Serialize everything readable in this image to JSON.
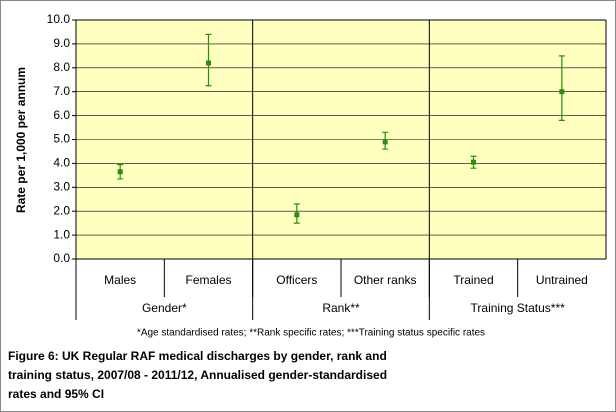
{
  "chart_data": {
    "type": "errorpoint",
    "y_label": "Rate per 1,000 per annum",
    "categories": [
      "Males",
      "Females",
      "Officers",
      "Other ranks",
      "Trained",
      "Untrained"
    ],
    "groups": [
      {
        "name": "Gender*",
        "span": 2
      },
      {
        "name": "Rank**",
        "span": 2
      },
      {
        "name": "Training Status***",
        "span": 2
      }
    ],
    "series": [
      {
        "color": "#2e8b14",
        "values": [
          3.65,
          8.2,
          1.85,
          4.9,
          4.05,
          7.0
        ],
        "lower": [
          3.35,
          7.25,
          1.5,
          4.6,
          3.8,
          5.8
        ],
        "upper": [
          3.95,
          9.4,
          2.3,
          5.3,
          4.3,
          8.5
        ]
      }
    ],
    "ylim": [
      0,
      10
    ],
    "yticks": [
      {
        "value": 0,
        "label": "0.0"
      },
      {
        "value": 1,
        "label": "1.0"
      },
      {
        "value": 2,
        "label": "2.0"
      },
      {
        "value": 3,
        "label": "3.0"
      },
      {
        "value": 4,
        "label": "4.0"
      },
      {
        "value": 5,
        "label": "5.0"
      },
      {
        "value": 6,
        "label": "6.0"
      },
      {
        "value": 7,
        "label": "7.0"
      },
      {
        "value": 8,
        "label": "8.0"
      },
      {
        "value": 9,
        "label": "9.0"
      },
      {
        "value": 10,
        "label": "10.0"
      }
    ],
    "grid": true,
    "plot_background": "#ffffc0",
    "footnote": "*Age standardised rates; **Rank specific rates; ***Training status specific rates",
    "caption": [
      "Figure 6: UK Regular RAF medical discharges by gender, rank and",
      "training status, 2007/08 - 2011/12, Annualised gender-standardised",
      "rates and 95% CI"
    ]
  }
}
